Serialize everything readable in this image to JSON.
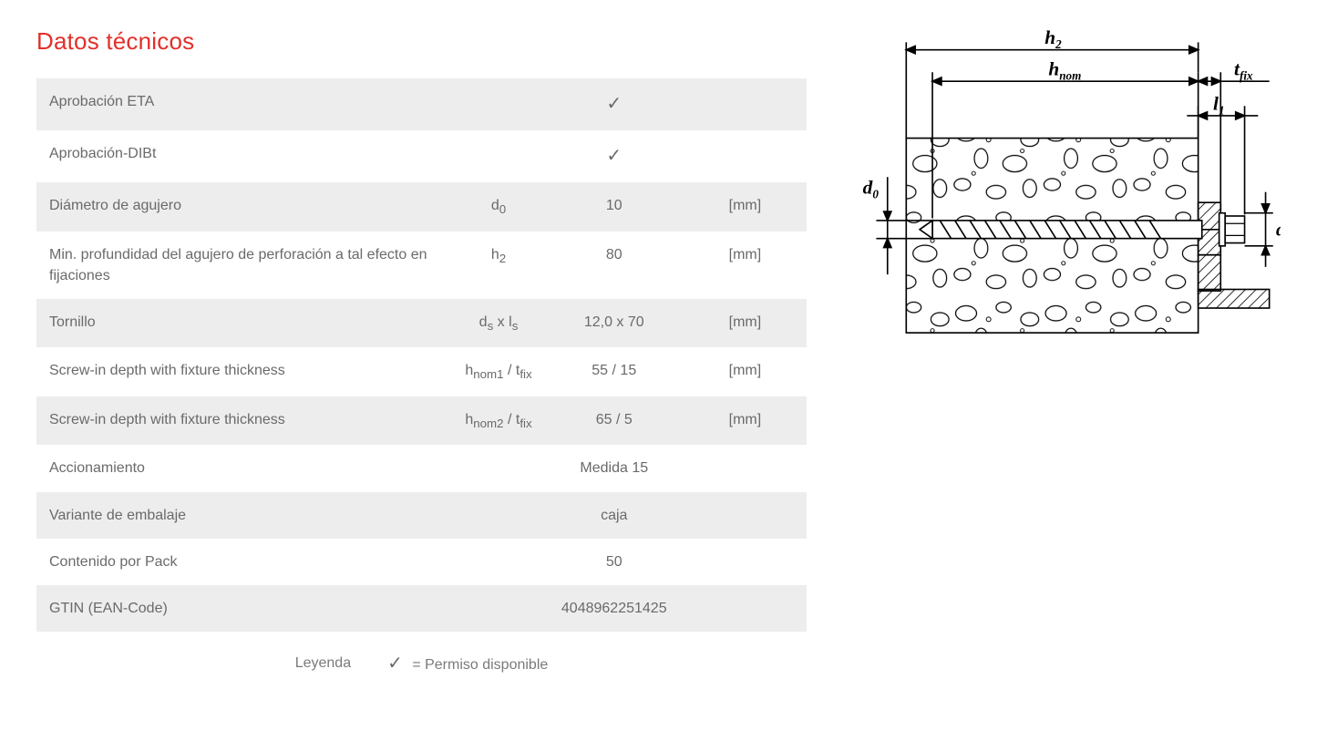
{
  "title": "Datos técnicos",
  "title_color": "#e1302a",
  "text_color": "#6a6a6a",
  "row_bg_alt": "#ededed",
  "row_bg": "#ffffff",
  "check_glyph": "✓",
  "table": {
    "rows": [
      {
        "label": "Aprobación ETA",
        "symbol_html": "",
        "value_html": "✓",
        "unit": "",
        "is_check": true
      },
      {
        "label": "Aprobación-DIBt",
        "symbol_html": "",
        "value_html": "✓",
        "unit": "",
        "is_check": true
      },
      {
        "label": "Diámetro de agujero",
        "symbol_html": "d<sub>0</sub>",
        "value_html": "10",
        "unit": "[mm]"
      },
      {
        "label": "Min. profundidad del agujero de perforación a tal efecto en fijaciones",
        "symbol_html": "h<sub>2</sub>",
        "value_html": "80",
        "unit": "[mm]"
      },
      {
        "label": "Tornillo",
        "symbol_html": "d<sub>s</sub> x l<sub>s</sub>",
        "value_html": "12,0 x 70",
        "unit": "[mm]"
      },
      {
        "label": "Screw-in depth with fixture thickness",
        "symbol_html": "h<sub>nom1</sub> / t<sub>fix</sub>",
        "value_html": "55 / 15",
        "unit": "[mm]"
      },
      {
        "label": "Screw-in depth with fixture thickness",
        "symbol_html": "h<sub>nom2</sub> / t<sub>fix</sub>",
        "value_html": "65 / 5",
        "unit": "[mm]"
      },
      {
        "label": "Accionamiento",
        "symbol_html": "",
        "value_html": "Medida 15",
        "unit": ""
      },
      {
        "label": "Variante de embalaje",
        "symbol_html": "",
        "value_html": "caja",
        "unit": ""
      },
      {
        "label": "Contenido por Pack",
        "symbol_html": "",
        "value_html": "50",
        "unit": ""
      },
      {
        "label": "GTIN (EAN-Code)",
        "symbol_html": "",
        "value_html": "4048962251425",
        "unit": ""
      }
    ]
  },
  "legend": {
    "label": "Leyenda",
    "text": "= Permiso disponible"
  },
  "diagram": {
    "labels": {
      "h2": "h",
      "h2_sub": "2",
      "hnom": "h",
      "hnom_sub": "nom",
      "tfix": "t",
      "tfix_sub": "fix",
      "l1": "l",
      "l1_sub": "1",
      "d0": "d",
      "d0_sub": "0",
      "dk": "d",
      "dk_sub": "K"
    },
    "colors": {
      "stroke": "#000000",
      "fill_block": "#ffffff",
      "fill_hatch": "#000000"
    },
    "stroke_width": 2
  }
}
